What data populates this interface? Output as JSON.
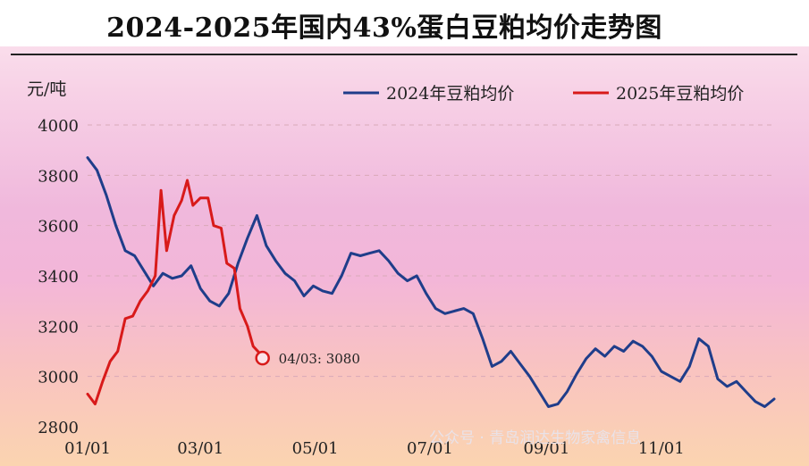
{
  "page": {
    "title": "2024-2025年国内43%蛋白豆粕均价走势图",
    "watermark": "公众号 · 青岛润达生物家禽信息"
  },
  "chart_data": {
    "type": "line",
    "title": "2024-2025年国内43%蛋白豆粕均价走势图",
    "ylabel": "元/吨",
    "xlabel": "",
    "ylim": [
      2800,
      4000
    ],
    "xlim": [
      "01/01",
      "12/31"
    ],
    "yticks": [
      2800,
      3000,
      3200,
      3400,
      3600,
      3800,
      4000
    ],
    "xticks": [
      "01/01",
      "03/01",
      "05/01",
      "07/01",
      "09/01",
      "11/01"
    ],
    "grid": "horizontal dashed",
    "legend_position": "top-right",
    "annotation": {
      "label": "04/03: 3080",
      "x": "04/03",
      "y": 3080
    },
    "series": [
      {
        "name": "2024年豆粕均价",
        "color": "#1f3d8a",
        "points": [
          [
            "01/01",
            3870
          ],
          [
            "01/06",
            3820
          ],
          [
            "01/11",
            3720
          ],
          [
            "01/16",
            3600
          ],
          [
            "01/21",
            3500
          ],
          [
            "01/26",
            3480
          ],
          [
            "01/31",
            3420
          ],
          [
            "02/05",
            3360
          ],
          [
            "02/10",
            3410
          ],
          [
            "02/15",
            3390
          ],
          [
            "02/20",
            3400
          ],
          [
            "02/25",
            3440
          ],
          [
            "03/01",
            3350
          ],
          [
            "03/06",
            3300
          ],
          [
            "03/11",
            3280
          ],
          [
            "03/16",
            3330
          ],
          [
            "03/21",
            3450
          ],
          [
            "03/26",
            3550
          ],
          [
            "03/31",
            3640
          ],
          [
            "04/05",
            3520
          ],
          [
            "04/10",
            3460
          ],
          [
            "04/15",
            3410
          ],
          [
            "04/20",
            3380
          ],
          [
            "04/25",
            3320
          ],
          [
            "04/30",
            3360
          ],
          [
            "05/05",
            3340
          ],
          [
            "05/10",
            3330
          ],
          [
            "05/15",
            3400
          ],
          [
            "05/20",
            3490
          ],
          [
            "05/25",
            3480
          ],
          [
            "05/30",
            3490
          ],
          [
            "06/04",
            3500
          ],
          [
            "06/09",
            3460
          ],
          [
            "06/14",
            3410
          ],
          [
            "06/19",
            3380
          ],
          [
            "06/24",
            3400
          ],
          [
            "06/29",
            3330
          ],
          [
            "07/04",
            3270
          ],
          [
            "07/09",
            3250
          ],
          [
            "07/14",
            3260
          ],
          [
            "07/19",
            3270
          ],
          [
            "07/24",
            3250
          ],
          [
            "07/29",
            3150
          ],
          [
            "08/03",
            3040
          ],
          [
            "08/08",
            3060
          ],
          [
            "08/13",
            3100
          ],
          [
            "08/18",
            3050
          ],
          [
            "08/23",
            3000
          ],
          [
            "08/28",
            2940
          ],
          [
            "09/02",
            2880
          ],
          [
            "09/07",
            2890
          ],
          [
            "09/12",
            2940
          ],
          [
            "09/17",
            3010
          ],
          [
            "09/22",
            3070
          ],
          [
            "09/27",
            3110
          ],
          [
            "10/02",
            3080
          ],
          [
            "10/07",
            3120
          ],
          [
            "10/12",
            3100
          ],
          [
            "10/17",
            3140
          ],
          [
            "10/22",
            3120
          ],
          [
            "10/27",
            3080
          ],
          [
            "11/01",
            3020
          ],
          [
            "11/06",
            3000
          ],
          [
            "11/11",
            2980
          ],
          [
            "11/16",
            3040
          ],
          [
            "11/21",
            3150
          ],
          [
            "11/26",
            3120
          ],
          [
            "12/01",
            2990
          ],
          [
            "12/06",
            2960
          ],
          [
            "12/11",
            2980
          ],
          [
            "12/16",
            2940
          ],
          [
            "12/21",
            2900
          ],
          [
            "12/26",
            2880
          ],
          [
            "12/31",
            2910
          ]
        ]
      },
      {
        "name": "2025年豆粕均价",
        "color": "#d81a1a",
        "points": [
          [
            "01/01",
            2930
          ],
          [
            "01/05",
            2890
          ],
          [
            "01/09",
            2980
          ],
          [
            "01/13",
            3060
          ],
          [
            "01/17",
            3100
          ],
          [
            "01/21",
            3230
          ],
          [
            "01/25",
            3240
          ],
          [
            "01/29",
            3300
          ],
          [
            "02/02",
            3340
          ],
          [
            "02/06",
            3400
          ],
          [
            "02/09",
            3740
          ],
          [
            "02/12",
            3500
          ],
          [
            "02/16",
            3640
          ],
          [
            "02/20",
            3700
          ],
          [
            "02/23",
            3780
          ],
          [
            "02/26",
            3680
          ],
          [
            "03/01",
            3710
          ],
          [
            "03/05",
            3710
          ],
          [
            "03/08",
            3600
          ],
          [
            "03/12",
            3590
          ],
          [
            "03/15",
            3450
          ],
          [
            "03/19",
            3430
          ],
          [
            "03/22",
            3270
          ],
          [
            "03/26",
            3200
          ],
          [
            "03/29",
            3120
          ],
          [
            "04/03",
            3080
          ]
        ]
      }
    ]
  }
}
